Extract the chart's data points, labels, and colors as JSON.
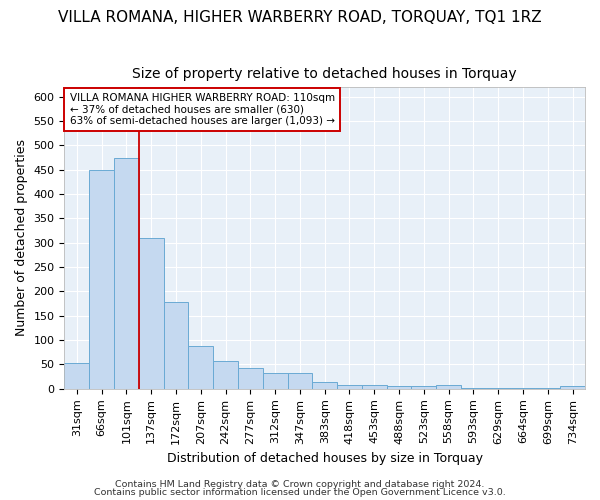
{
  "title": "VILLA ROMANA, HIGHER WARBERRY ROAD, TORQUAY, TQ1 1RZ",
  "subtitle": "Size of property relative to detached houses in Torquay",
  "xlabel": "Distribution of detached houses by size in Torquay",
  "ylabel": "Number of detached properties",
  "categories": [
    "31sqm",
    "66sqm",
    "101sqm",
    "137sqm",
    "172sqm",
    "207sqm",
    "242sqm",
    "277sqm",
    "312sqm",
    "347sqm",
    "383sqm",
    "418sqm",
    "453sqm",
    "488sqm",
    "523sqm",
    "558sqm",
    "593sqm",
    "629sqm",
    "664sqm",
    "699sqm",
    "734sqm"
  ],
  "values": [
    52,
    450,
    473,
    310,
    178,
    88,
    57,
    42,
    32,
    32,
    15,
    8,
    8,
    6,
    5,
    8,
    1,
    1,
    1,
    1,
    5
  ],
  "bar_color": "#c5d9f0",
  "bar_edge_color": "#6aaad4",
  "vline_color": "#cc0000",
  "vline_position": 2.5,
  "annotation_text": "VILLA ROMANA HIGHER WARBERRY ROAD: 110sqm\n← 37% of detached houses are smaller (630)\n63% of semi-detached houses are larger (1,093) →",
  "annotation_box_facecolor": "#ffffff",
  "annotation_box_edgecolor": "#cc0000",
  "ylim": [
    0,
    620
  ],
  "yticks": [
    0,
    50,
    100,
    150,
    200,
    250,
    300,
    350,
    400,
    450,
    500,
    550,
    600
  ],
  "footer1": "Contains HM Land Registry data © Crown copyright and database right 2024.",
  "footer2": "Contains public sector information licensed under the Open Government Licence v3.0.",
  "plot_bg_color": "#e8f0f8",
  "fig_bg_color": "#ffffff",
  "grid_color": "#ffffff",
  "title_fontsize": 11,
  "subtitle_fontsize": 10,
  "axis_label_fontsize": 9,
  "tick_fontsize": 8,
  "annotation_fontsize": 7.5,
  "footer_fontsize": 6.8
}
